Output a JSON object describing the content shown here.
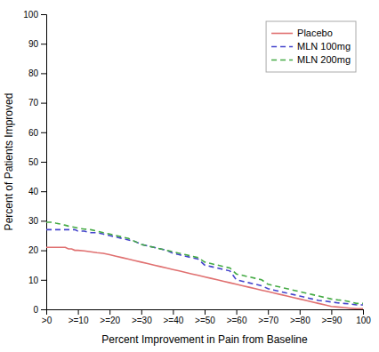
{
  "chart_data": {
    "type": "line",
    "xlabel": "Percent Improvement in Pain from Baseline",
    "ylabel": "Percent of Patients Improved",
    "x": [
      0,
      1,
      2,
      3,
      4,
      5,
      6,
      7,
      8,
      9,
      10,
      12,
      14,
      16,
      18,
      20,
      22,
      24,
      26,
      28,
      30,
      32,
      34,
      36,
      38,
      40,
      42,
      44,
      46,
      48,
      50,
      52,
      54,
      56,
      58,
      60,
      62,
      64,
      66,
      68,
      70,
      72,
      74,
      76,
      78,
      80,
      82,
      84,
      86,
      88,
      90,
      92,
      94,
      96,
      98,
      100
    ],
    "series": [
      {
        "name": "Placebo",
        "color": "#e07070",
        "line_style": "solid",
        "values": [
          21,
          21,
          21,
          21,
          21,
          21,
          21,
          20.5,
          20.5,
          20,
          20,
          19.8,
          19.5,
          19.2,
          19,
          18.5,
          18,
          17.5,
          17,
          16.5,
          16,
          15.5,
          15,
          14.5,
          14,
          13.5,
          13,
          12.5,
          12,
          11.5,
          11,
          10.5,
          10,
          9.5,
          9,
          8.5,
          8,
          7.5,
          7,
          6.5,
          6,
          5.5,
          5,
          4.5,
          4,
          3.5,
          3,
          2.5,
          2,
          1.5,
          1,
          0.8,
          0.6,
          0.4,
          0.2,
          0.2
        ]
      },
      {
        "name": "MLN 100mg",
        "color": "#4444cc",
        "line_style": "dashed",
        "values": [
          27,
          27,
          27,
          27,
          27,
          27,
          27,
          27,
          27,
          27,
          26.5,
          26.5,
          26,
          26,
          25.5,
          25,
          24.5,
          24,
          23.5,
          23,
          22,
          21.5,
          21,
          20.5,
          20,
          19,
          18.5,
          18,
          17.5,
          17,
          15,
          14.5,
          14,
          13.5,
          13,
          10,
          9.5,
          9,
          8.5,
          8,
          7,
          6.5,
          6,
          5.5,
          5,
          4.5,
          4,
          3.5,
          3,
          2.8,
          2.5,
          2.2,
          2,
          1.8,
          1.5,
          1.5
        ]
      },
      {
        "name": "MLN 200mg",
        "color": "#44aa44",
        "line_style": "dashed",
        "values": [
          29.5,
          29.5,
          29.5,
          29.2,
          29,
          28.8,
          28.5,
          28.2,
          28,
          27.8,
          27.5,
          27.2,
          27,
          26.5,
          26,
          25.5,
          25,
          24.5,
          24,
          23,
          22,
          21.5,
          21,
          20.5,
          20,
          19.5,
          19,
          18.5,
          18,
          17.5,
          16,
          15.5,
          15,
          14.5,
          14,
          12,
          11.5,
          11,
          10.5,
          10,
          8.5,
          8,
          7.5,
          7,
          6.5,
          6,
          5.5,
          5,
          4.5,
          4,
          3.5,
          3.2,
          3,
          2.5,
          2,
          2
        ]
      }
    ],
    "xlim": [
      0,
      100
    ],
    "ylim": [
      0,
      100
    ],
    "xticks": [
      {
        "value": 0,
        "label": ">0"
      },
      {
        "value": 10,
        "label": ">=10"
      },
      {
        "value": 20,
        "label": ">=20"
      },
      {
        "value": 30,
        "label": ">=30"
      },
      {
        "value": 40,
        "label": ">=40"
      },
      {
        "value": 50,
        "label": ">=50"
      },
      {
        "value": 60,
        "label": ">=60"
      },
      {
        "value": 70,
        "label": ">=70"
      },
      {
        "value": 80,
        "label": ">=80"
      },
      {
        "value": 90,
        "label": ">=90"
      },
      100
    ],
    "yticks": [
      0,
      10,
      20,
      30,
      40,
      50,
      60,
      70,
      80,
      90,
      100
    ],
    "grid": false,
    "legend": "upper right"
  }
}
